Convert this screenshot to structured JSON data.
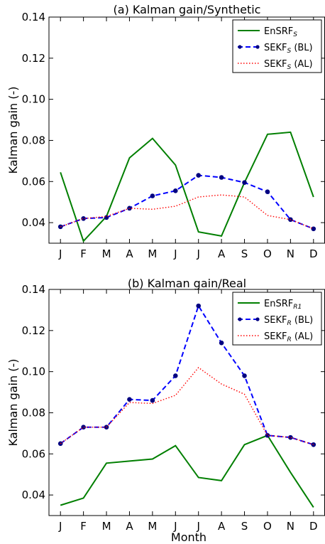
{
  "figure": {
    "xlabel": "Month"
  },
  "chart_data": [
    {
      "type": "line",
      "title": "(a) Kalman gain/Synthetic",
      "xlabel": "",
      "ylabel": "Kalman gain (-)",
      "categories": [
        "J",
        "F",
        "M",
        "A",
        "M",
        "J",
        "J",
        "A",
        "S",
        "O",
        "N",
        "D"
      ],
      "ylim": [
        0.03,
        0.14
      ],
      "yticks": [
        0.04,
        0.06,
        0.08,
        0.1,
        0.12,
        0.14
      ],
      "ytick_labels": [
        "0.04",
        "0.06",
        "0.08",
        "0.10",
        "0.12",
        "0.14"
      ],
      "grid": false,
      "legend_position": "top-right",
      "series": [
        {
          "name": "EnSRF",
          "name_sub": "S",
          "name_suffix": "",
          "color": "#007f00",
          "style": "solid",
          "markers": false,
          "values": [
            0.0645,
            0.031,
            0.043,
            0.0715,
            0.081,
            0.068,
            0.0355,
            0.0335,
            0.0595,
            0.083,
            0.084,
            0.0525
          ]
        },
        {
          "name": "SEKF",
          "name_sub": "S",
          "name_suffix": " (BL)",
          "color": "#0000ff",
          "style": "dashed",
          "markers": true,
          "values": [
            0.038,
            0.042,
            0.0425,
            0.047,
            0.053,
            0.0555,
            0.063,
            0.062,
            0.0595,
            0.055,
            0.0415,
            0.037
          ]
        },
        {
          "name": "SEKF",
          "name_sub": "S",
          "name_suffix": " (AL)",
          "color": "#ff0000",
          "style": "dotted",
          "markers": false,
          "values": [
            0.038,
            0.042,
            0.043,
            0.047,
            0.0465,
            0.048,
            0.0525,
            0.0535,
            0.0525,
            0.0435,
            0.0415,
            0.037
          ]
        }
      ]
    },
    {
      "type": "line",
      "title": "(b) Kalman gain/Real",
      "xlabel": "Month",
      "ylabel": "Kalman gain (-)",
      "categories": [
        "J",
        "F",
        "M",
        "A",
        "M",
        "J",
        "J",
        "A",
        "S",
        "O",
        "N",
        "D"
      ],
      "ylim": [
        0.03,
        0.14
      ],
      "yticks": [
        0.04,
        0.06,
        0.08,
        0.1,
        0.12,
        0.14
      ],
      "ytick_labels": [
        "0.04",
        "0.06",
        "0.08",
        "0.10",
        "0.12",
        "0.14"
      ],
      "grid": false,
      "legend_position": "top-right",
      "series": [
        {
          "name": "EnSRF",
          "name_sub": "R1",
          "name_suffix": "",
          "color": "#007f00",
          "style": "solid",
          "markers": false,
          "values": [
            0.035,
            0.0385,
            0.0555,
            0.0565,
            0.0575,
            0.064,
            0.0485,
            0.047,
            0.0645,
            0.069,
            0.051,
            0.034
          ]
        },
        {
          "name": "SEKF",
          "name_sub": "R",
          "name_suffix": " (BL)",
          "color": "#0000ff",
          "style": "dashed",
          "markers": true,
          "values": [
            0.065,
            0.073,
            0.073,
            0.0865,
            0.086,
            0.098,
            0.132,
            0.114,
            0.098,
            0.069,
            0.068,
            0.0645
          ]
        },
        {
          "name": "SEKF",
          "name_sub": "R",
          "name_suffix": " (AL)",
          "color": "#ff0000",
          "style": "dotted",
          "markers": false,
          "values": [
            0.065,
            0.073,
            0.073,
            0.085,
            0.0845,
            0.0885,
            0.102,
            0.094,
            0.089,
            0.069,
            0.068,
            0.0645
          ]
        }
      ]
    }
  ]
}
